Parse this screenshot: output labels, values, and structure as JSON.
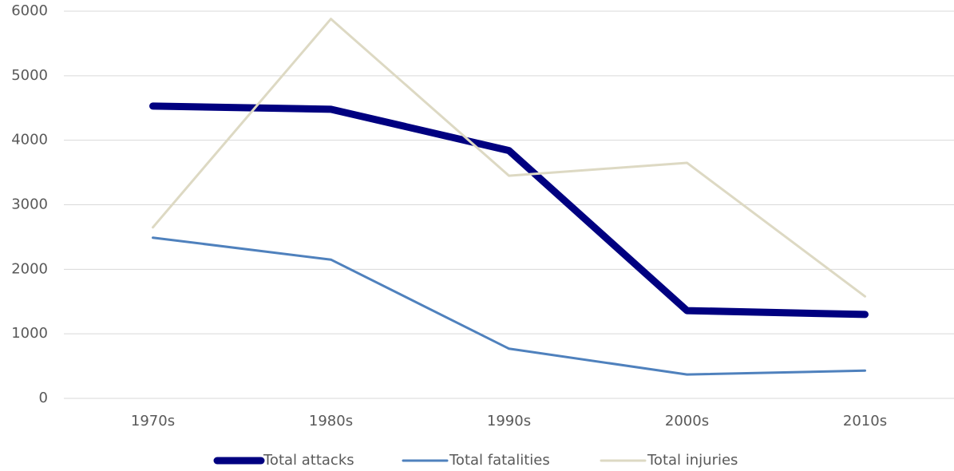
{
  "chart_data": {
    "type": "line",
    "categories": [
      "1970s",
      "1980s",
      "1990s",
      "2000s",
      "2010s"
    ],
    "series": [
      {
        "name": "Total attacks",
        "color": "#000080",
        "line_width": 9,
        "values": [
          4530,
          4480,
          3840,
          1360,
          1300
        ]
      },
      {
        "name": "Total fatalities",
        "color": "#4f81bd",
        "line_width": 3,
        "values": [
          2490,
          2150,
          770,
          370,
          430
        ]
      },
      {
        "name": "Total injuries",
        "color": "#ddd9c3",
        "line_width": 3,
        "values": [
          2650,
          5880,
          3450,
          3650,
          1580
        ]
      }
    ],
    "ylim": [
      0,
      6000
    ],
    "yticks": [
      0,
      1000,
      2000,
      3000,
      4000,
      5000,
      6000
    ],
    "grid": true,
    "legend": "bottom"
  }
}
